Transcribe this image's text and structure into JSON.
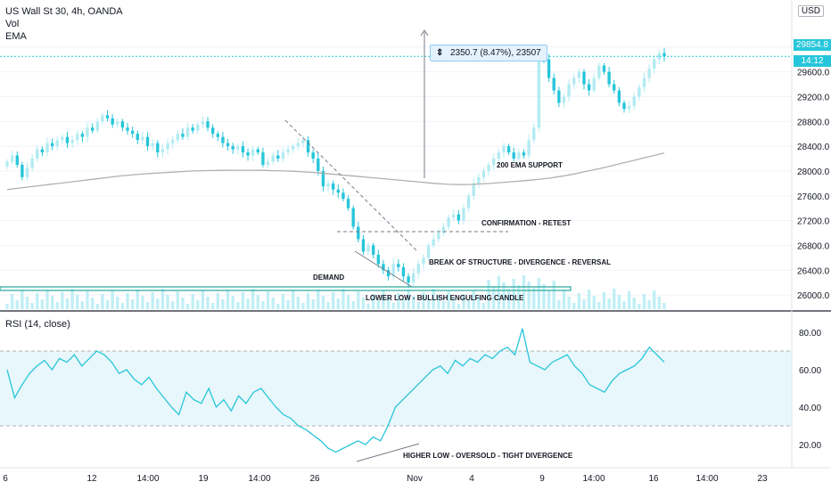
{
  "header": {
    "symbol_title": "US Wall St 30, 4h, OANDA",
    "volume_label": "Vol",
    "ema_label": "EMA",
    "currency": "USD",
    "last_price": "29854.8",
    "countdown": "14:12",
    "rsi_label": "RSI (14, close)"
  },
  "measure": {
    "text": "2350.7 (8.47%), 23507"
  },
  "annotations": [
    {
      "id": "ema-support",
      "text": "200 EMA SUPPORT"
    },
    {
      "id": "confirmation",
      "text": "CONFIRMATION - RETEST"
    },
    {
      "id": "break",
      "text": "BREAK OF STRUCTURE - DIVERGENCE - REVERSAL"
    },
    {
      "id": "demand",
      "text": "DEMAND"
    },
    {
      "id": "lower-low",
      "text": "LOWER LOW - BULLISH ENGULFING CANDLE"
    },
    {
      "id": "higher-low",
      "text": "HIGHER LOW - OVERSOLD - TIGHT DIVERGENCE"
    }
  ],
  "colors": {
    "up": "#b2ebf2",
    "down": "#26c6da",
    "ema": "#b0b0b0",
    "rsi": "#26c6da",
    "rsi_band": "#e8f7fb",
    "grid": "#f0f3fa",
    "axis_text": "#131722",
    "volume": "#b2ebf2"
  },
  "chart_data": [
    {
      "type": "candlestick",
      "title": "US Wall St 30, 4h, OANDA",
      "ylim": [
        25800,
        30500
      ],
      "y_ticks": [
        26000.0,
        26400.0,
        26800.0,
        27200.0,
        27600.0,
        28000.0,
        28400.0,
        28800.0,
        29200.0,
        29600.0,
        30000.0
      ],
      "y_tick_labels": [
        "26000.0",
        "26400.0",
        "26800.0",
        "27200.0",
        "27600.0",
        "28000.0",
        "28400.0",
        "28800.0",
        "29200.0",
        "29600.0",
        "30000.0"
      ],
      "x_tick_labels": [
        "6",
        "12",
        "14:00",
        "19",
        "14:00",
        "26",
        "Nov",
        "4",
        "9",
        "14:00",
        "16",
        "14:00",
        "23"
      ],
      "price_close": [
        28150,
        28250,
        28100,
        27900,
        28050,
        28200,
        28350,
        28300,
        28450,
        28400,
        28500,
        28550,
        28450,
        28500,
        28600,
        28550,
        28700,
        28650,
        28800,
        28900,
        28850,
        28750,
        28800,
        28700,
        28650,
        28600,
        28500,
        28550,
        28400,
        28450,
        28300,
        28350,
        28450,
        28500,
        28600,
        28550,
        28700,
        28650,
        28750,
        28800,
        28700,
        28600,
        28550,
        28450,
        28400,
        28350,
        28400,
        28300,
        28250,
        28350,
        28300,
        28100,
        28150,
        28250,
        28200,
        28300,
        28350,
        28400,
        28450,
        28500,
        28300,
        28200,
        28000,
        27750,
        27800,
        27700,
        27650,
        27550,
        27400,
        27100,
        26900,
        26700,
        26800,
        26650,
        26500,
        26400,
        26300,
        26500,
        26450,
        26300,
        26200,
        26350,
        26500,
        26600,
        26800,
        26900,
        27000,
        27100,
        27250,
        27300,
        27200,
        27400,
        27600,
        27800,
        27900,
        28000,
        28100,
        28200,
        28300,
        28400,
        28300,
        28200,
        28300,
        28250,
        28500,
        28700,
        29900,
        29800,
        29500,
        29300,
        29100,
        29200,
        29400,
        29500,
        29600,
        29400,
        29300,
        29500,
        29700,
        29600,
        29400,
        29300,
        29100,
        29000,
        29050,
        29200,
        29350,
        29500,
        29650,
        29800,
        29900,
        29850
      ],
      "ema200": [
        27700,
        27720,
        27740,
        27760,
        27780,
        27800,
        27820,
        27840,
        27860,
        27880,
        27900,
        27920,
        27935,
        27950,
        27960,
        27970,
        27980,
        27990,
        28000,
        28005,
        28008,
        28010,
        28012,
        28012,
        28012,
        28010,
        28005,
        28000,
        27995,
        27985,
        27975,
        27960,
        27945,
        27930,
        27915,
        27900,
        27885,
        27870,
        27855,
        27840,
        27825,
        27810,
        27795,
        27785,
        27780,
        27782,
        27790,
        27800,
        27812,
        27825,
        27838,
        27852,
        27870,
        27890,
        27915,
        27945,
        27980,
        28015,
        28050,
        28090,
        28130,
        28170,
        28210,
        28250,
        28290
      ]
    },
    {
      "type": "line",
      "title": "RSI (14, close)",
      "ylim": [
        10,
        90
      ],
      "y_ticks": [
        20.0,
        40.0,
        60.0,
        80.0
      ],
      "y_tick_labels": [
        "20.00",
        "40.00",
        "60.00",
        "80.00"
      ],
      "band": [
        30,
        70
      ],
      "values": [
        60,
        45,
        52,
        58,
        62,
        65,
        60,
        66,
        64,
        68,
        62,
        66,
        70,
        68,
        64,
        58,
        60,
        55,
        52,
        56,
        50,
        45,
        40,
        36,
        48,
        44,
        42,
        50,
        40,
        44,
        38,
        46,
        42,
        48,
        50,
        45,
        40,
        36,
        34,
        30,
        28,
        25,
        22,
        18,
        16,
        18,
        20,
        22,
        20,
        24,
        22,
        30,
        40,
        44,
        48,
        52,
        56,
        60,
        62,
        58,
        65,
        62,
        66,
        64,
        68,
        66,
        70,
        72,
        68,
        82,
        64,
        62,
        60,
        64,
        66,
        68,
        62,
        58,
        52,
        50,
        48,
        54,
        58,
        60,
        62,
        66,
        72,
        68,
        64
      ]
    }
  ]
}
